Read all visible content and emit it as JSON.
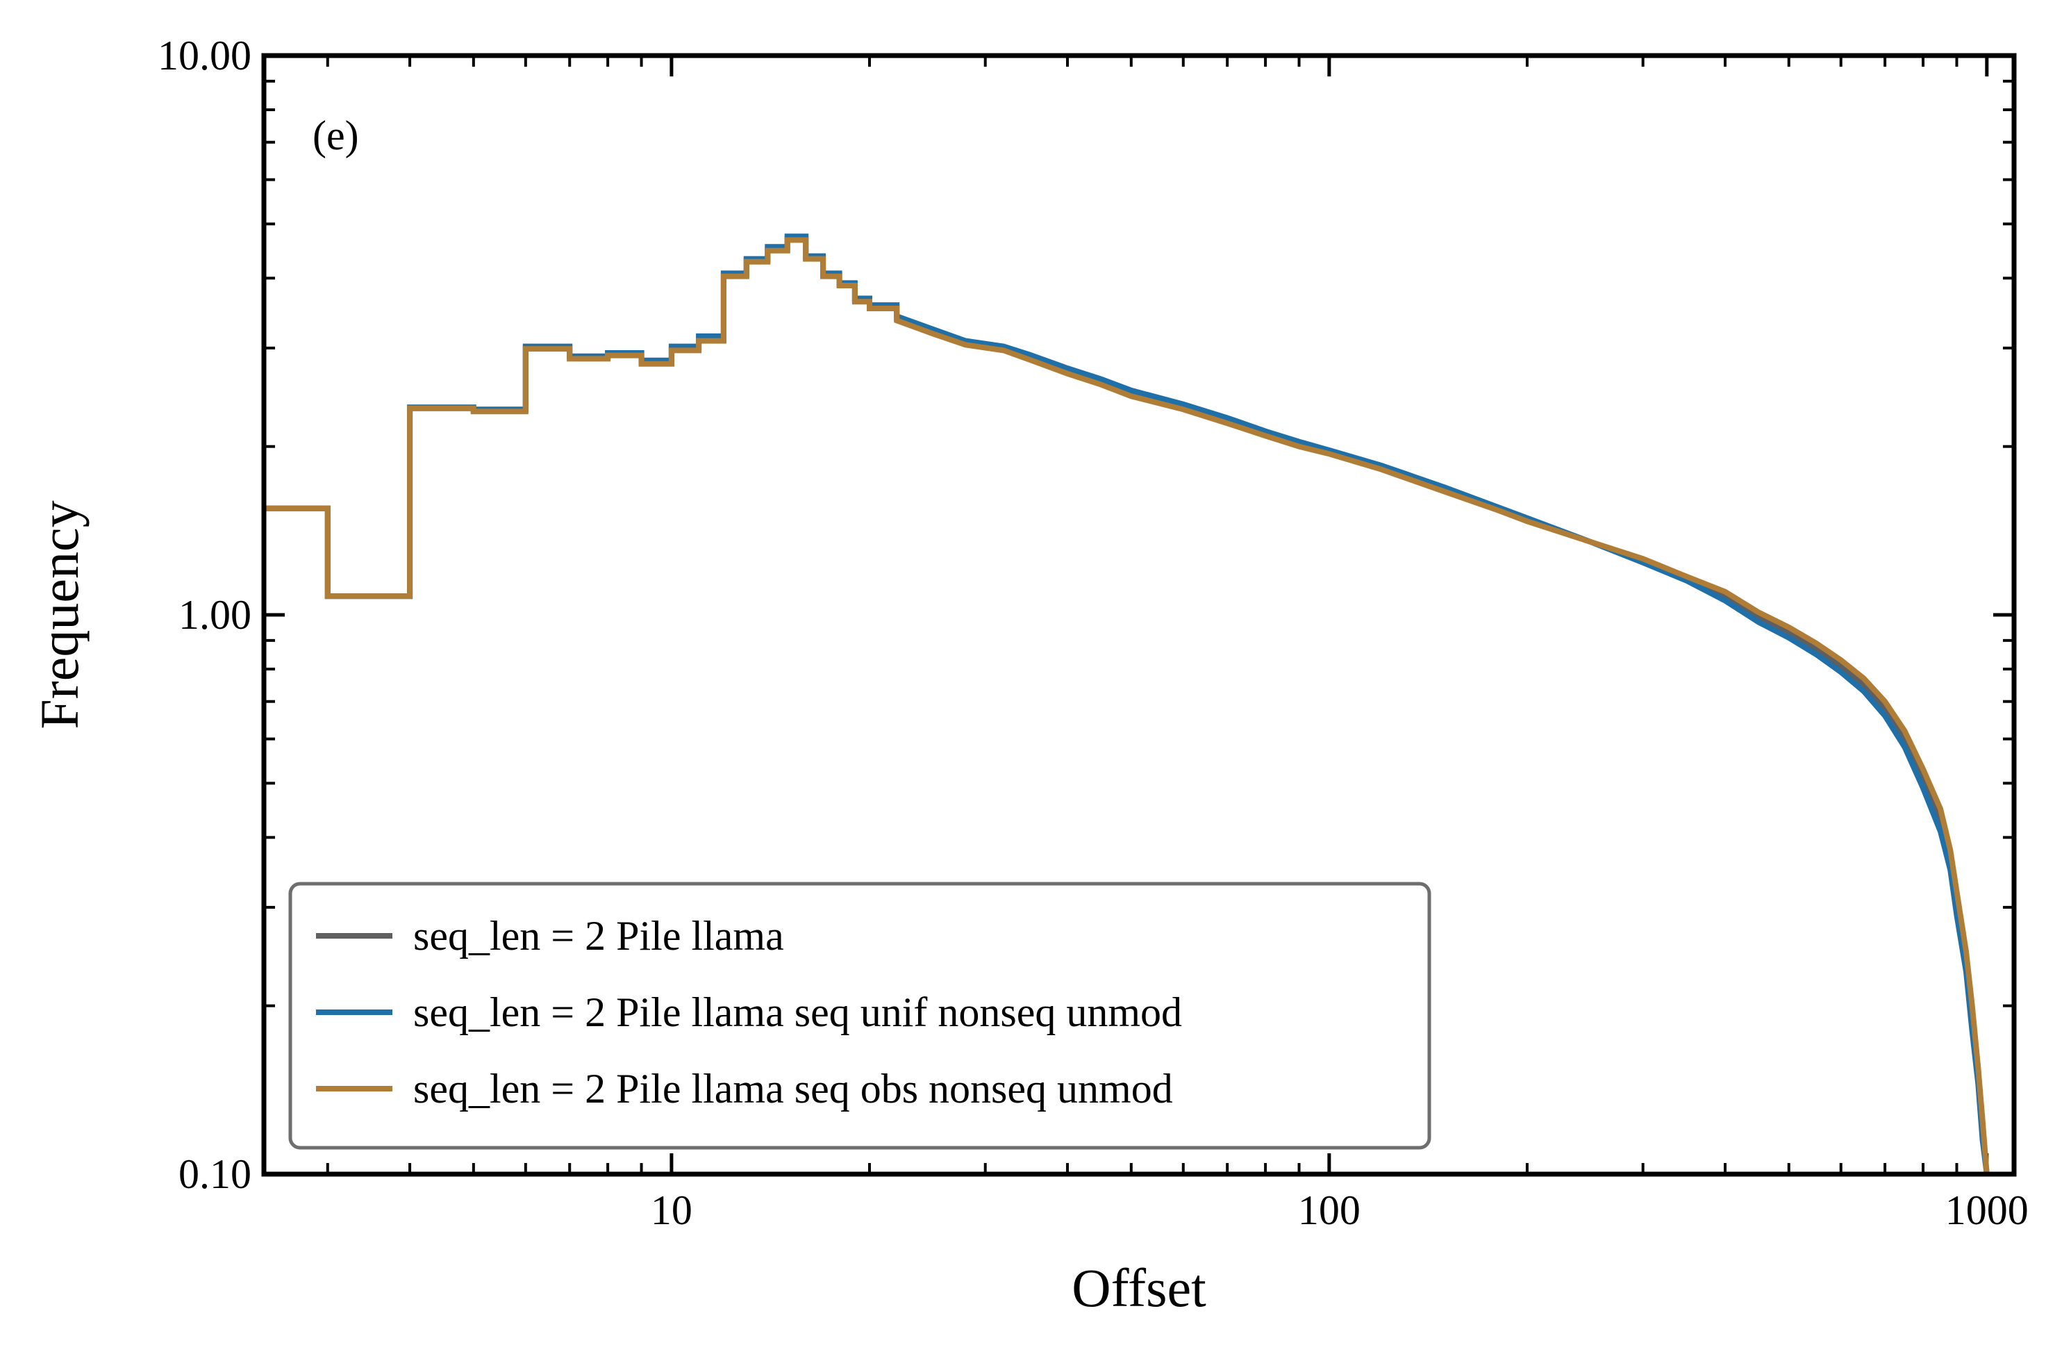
{
  "chart_data": {
    "type": "line",
    "panel_label": "(e)",
    "xlabel": "Offset",
    "ylabel": "Frequency",
    "x_scale": "log",
    "y_scale": "log",
    "xlim": [
      2.4,
      1100
    ],
    "ylim": [
      0.1,
      10
    ],
    "x_ticks": [
      {
        "value": 10,
        "label": "10"
      },
      {
        "value": 100,
        "label": "100"
      },
      {
        "value": 1000,
        "label": "1000"
      }
    ],
    "y_ticks": [
      {
        "value": 0.1,
        "label": "0.10"
      },
      {
        "value": 1,
        "label": "1.00"
      },
      {
        "value": 10,
        "label": "10.00"
      }
    ],
    "grid": false,
    "legend_position": "lower-left",
    "series": [
      {
        "name": "seq_len = 2 Pile llama",
        "color": "#5f5f5f",
        "points": [
          [
            2.4,
            1.55
          ],
          [
            3,
            1.55
          ],
          [
            3,
            1.08
          ],
          [
            4,
            1.08
          ],
          [
            4,
            2.34
          ],
          [
            5,
            2.34
          ],
          [
            5,
            2.32
          ],
          [
            6,
            2.32
          ],
          [
            6,
            3.0
          ],
          [
            7,
            3.0
          ],
          [
            7,
            2.88
          ],
          [
            8,
            2.88
          ],
          [
            8,
            2.92
          ],
          [
            9,
            2.92
          ],
          [
            9,
            2.82
          ],
          [
            10,
            2.82
          ],
          [
            10,
            2.98
          ],
          [
            11,
            2.98
          ],
          [
            11,
            3.1
          ],
          [
            12,
            3.1
          ],
          [
            12,
            4.05
          ],
          [
            13,
            4.05
          ],
          [
            13,
            4.3
          ],
          [
            14,
            4.3
          ],
          [
            14,
            4.5
          ],
          [
            15,
            4.5
          ],
          [
            15,
            4.7
          ],
          [
            16,
            4.7
          ],
          [
            16,
            4.35
          ],
          [
            17,
            4.35
          ],
          [
            17,
            4.05
          ],
          [
            18,
            4.05
          ],
          [
            18,
            3.9
          ],
          [
            19,
            3.9
          ],
          [
            19,
            3.65
          ],
          [
            20,
            3.65
          ],
          [
            20,
            3.55
          ],
          [
            22,
            3.55
          ],
          [
            22,
            3.38
          ],
          [
            25,
            3.2
          ],
          [
            28,
            3.05
          ],
          [
            32,
            2.98
          ],
          [
            35,
            2.88
          ],
          [
            40,
            2.72
          ],
          [
            45,
            2.6
          ],
          [
            50,
            2.48
          ],
          [
            60,
            2.35
          ],
          [
            70,
            2.22
          ],
          [
            80,
            2.1
          ],
          [
            90,
            2.01
          ],
          [
            100,
            1.95
          ],
          [
            120,
            1.83
          ],
          [
            150,
            1.67
          ],
          [
            180,
            1.55
          ],
          [
            200,
            1.48
          ],
          [
            250,
            1.35
          ],
          [
            300,
            1.25
          ],
          [
            350,
            1.16
          ],
          [
            400,
            1.08
          ],
          [
            450,
            0.99
          ],
          [
            500,
            0.93
          ],
          [
            550,
            0.87
          ],
          [
            600,
            0.81
          ],
          [
            650,
            0.75
          ],
          [
            700,
            0.68
          ],
          [
            750,
            0.6
          ],
          [
            800,
            0.51
          ],
          [
            850,
            0.43
          ],
          [
            880,
            0.36
          ],
          [
            900,
            0.3
          ],
          [
            930,
            0.24
          ],
          [
            950,
            0.19
          ],
          [
            970,
            0.15
          ],
          [
            985,
            0.12
          ],
          [
            1000,
            0.1
          ]
        ]
      },
      {
        "name": "seq_len = 2 Pile llama seq unif nonseq unmod",
        "color": "#1f6fa8",
        "points": [
          [
            2.4,
            1.55
          ],
          [
            3,
            1.55
          ],
          [
            3,
            1.08
          ],
          [
            4,
            1.08
          ],
          [
            4,
            2.35
          ],
          [
            5,
            2.35
          ],
          [
            5,
            2.33
          ],
          [
            6,
            2.33
          ],
          [
            6,
            3.02
          ],
          [
            7,
            3.02
          ],
          [
            7,
            2.9
          ],
          [
            8,
            2.9
          ],
          [
            8,
            2.94
          ],
          [
            9,
            2.94
          ],
          [
            9,
            2.85
          ],
          [
            10,
            2.85
          ],
          [
            10,
            3.02
          ],
          [
            11,
            3.02
          ],
          [
            11,
            3.15
          ],
          [
            12,
            3.15
          ],
          [
            12,
            4.08
          ],
          [
            13,
            4.08
          ],
          [
            13,
            4.33
          ],
          [
            14,
            4.33
          ],
          [
            14,
            4.55
          ],
          [
            15,
            4.55
          ],
          [
            15,
            4.75
          ],
          [
            16,
            4.75
          ],
          [
            16,
            4.38
          ],
          [
            17,
            4.38
          ],
          [
            17,
            4.08
          ],
          [
            18,
            4.08
          ],
          [
            18,
            3.92
          ],
          [
            19,
            3.92
          ],
          [
            19,
            3.68
          ],
          [
            20,
            3.68
          ],
          [
            20,
            3.58
          ],
          [
            22,
            3.58
          ],
          [
            22,
            3.42
          ],
          [
            25,
            3.24
          ],
          [
            28,
            3.09
          ],
          [
            32,
            3.02
          ],
          [
            35,
            2.92
          ],
          [
            40,
            2.76
          ],
          [
            45,
            2.64
          ],
          [
            50,
            2.52
          ],
          [
            60,
            2.38
          ],
          [
            70,
            2.25
          ],
          [
            80,
            2.13
          ],
          [
            90,
            2.04
          ],
          [
            100,
            1.97
          ],
          [
            120,
            1.85
          ],
          [
            150,
            1.69
          ],
          [
            180,
            1.56
          ],
          [
            200,
            1.49
          ],
          [
            250,
            1.35
          ],
          [
            300,
            1.24
          ],
          [
            350,
            1.15
          ],
          [
            400,
            1.06
          ],
          [
            450,
            0.97
          ],
          [
            500,
            0.91
          ],
          [
            550,
            0.85
          ],
          [
            600,
            0.79
          ],
          [
            650,
            0.73
          ],
          [
            700,
            0.66
          ],
          [
            750,
            0.58
          ],
          [
            800,
            0.49
          ],
          [
            850,
            0.41
          ],
          [
            880,
            0.35
          ],
          [
            900,
            0.29
          ],
          [
            930,
            0.23
          ],
          [
            950,
            0.18
          ],
          [
            970,
            0.145
          ],
          [
            985,
            0.115
          ],
          [
            1000,
            0.1
          ]
        ]
      },
      {
        "name": "seq_len = 2 Pile llama seq obs nonseq unmod",
        "color": "#b07d36",
        "points": [
          [
            2.4,
            1.55
          ],
          [
            3,
            1.55
          ],
          [
            3,
            1.08
          ],
          [
            4,
            1.08
          ],
          [
            4,
            2.34
          ],
          [
            5,
            2.34
          ],
          [
            5,
            2.31
          ],
          [
            6,
            2.31
          ],
          [
            6,
            2.99
          ],
          [
            7,
            2.99
          ],
          [
            7,
            2.87
          ],
          [
            8,
            2.87
          ],
          [
            8,
            2.91
          ],
          [
            9,
            2.91
          ],
          [
            9,
            2.81
          ],
          [
            10,
            2.81
          ],
          [
            10,
            2.97
          ],
          [
            11,
            2.97
          ],
          [
            11,
            3.09
          ],
          [
            12,
            3.09
          ],
          [
            12,
            4.03
          ],
          [
            13,
            4.03
          ],
          [
            13,
            4.28
          ],
          [
            14,
            4.28
          ],
          [
            14,
            4.48
          ],
          [
            15,
            4.48
          ],
          [
            15,
            4.68
          ],
          [
            16,
            4.68
          ],
          [
            16,
            4.33
          ],
          [
            17,
            4.33
          ],
          [
            17,
            4.03
          ],
          [
            18,
            4.03
          ],
          [
            18,
            3.88
          ],
          [
            19,
            3.88
          ],
          [
            19,
            3.63
          ],
          [
            20,
            3.63
          ],
          [
            20,
            3.53
          ],
          [
            22,
            3.53
          ],
          [
            22,
            3.36
          ],
          [
            25,
            3.18
          ],
          [
            28,
            3.04
          ],
          [
            32,
            2.97
          ],
          [
            35,
            2.86
          ],
          [
            40,
            2.7
          ],
          [
            45,
            2.58
          ],
          [
            50,
            2.46
          ],
          [
            60,
            2.33
          ],
          [
            70,
            2.2
          ],
          [
            80,
            2.09
          ],
          [
            90,
            2.0
          ],
          [
            100,
            1.94
          ],
          [
            120,
            1.82
          ],
          [
            150,
            1.66
          ],
          [
            180,
            1.54
          ],
          [
            200,
            1.47
          ],
          [
            250,
            1.35
          ],
          [
            300,
            1.26
          ],
          [
            350,
            1.17
          ],
          [
            400,
            1.1
          ],
          [
            450,
            1.01
          ],
          [
            500,
            0.95
          ],
          [
            550,
            0.89
          ],
          [
            600,
            0.83
          ],
          [
            650,
            0.77
          ],
          [
            700,
            0.7
          ],
          [
            750,
            0.62
          ],
          [
            800,
            0.53
          ],
          [
            850,
            0.45
          ],
          [
            880,
            0.38
          ],
          [
            900,
            0.32
          ],
          [
            930,
            0.25
          ],
          [
            950,
            0.2
          ],
          [
            970,
            0.155
          ],
          [
            985,
            0.125
          ],
          [
            1000,
            0.1
          ]
        ]
      }
    ]
  }
}
